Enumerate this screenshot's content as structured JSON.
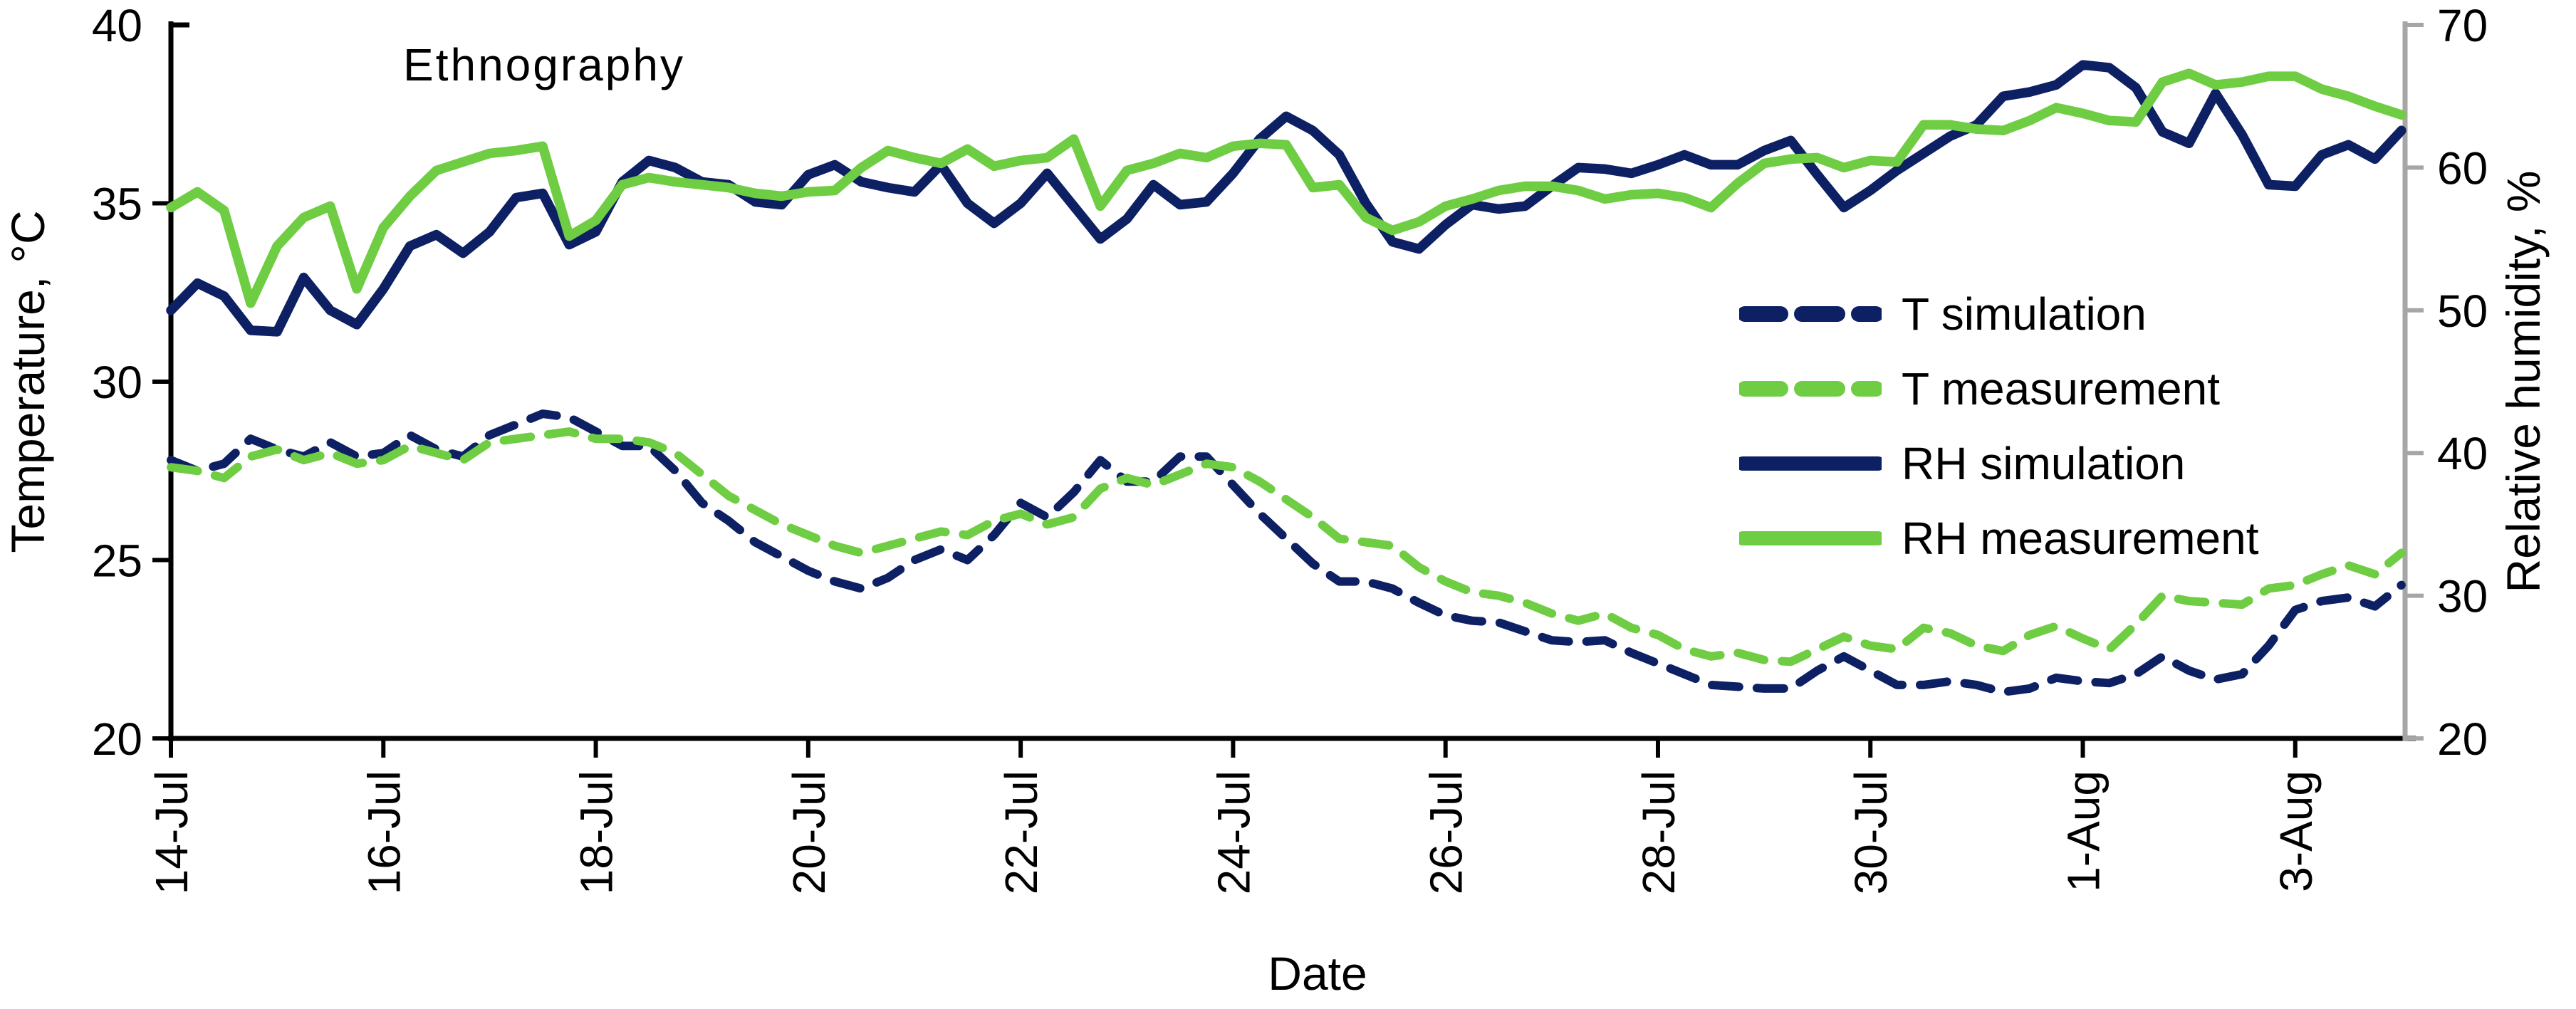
{
  "figure": {
    "background": "#ffffff"
  },
  "colors": {
    "navy": "#0d2063",
    "green": "#6fcd43",
    "right_axis_gray": "#a6a6a6",
    "text": "#000000"
  },
  "chart_data": {
    "type": "line",
    "title": "Ethnography",
    "xlabel": "Date",
    "ylabel_left": "Temperature, °C",
    "ylabel_right": "Relative humidity, %",
    "grid": false,
    "legend_position": "center-right",
    "x_axis": {
      "tick_labels": [
        "14-Jul",
        "16-Jul",
        "18-Jul",
        "20-Jul",
        "22-Jul",
        "24-Jul",
        "26-Jul",
        "28-Jul",
        "30-Jul",
        "1-Aug",
        "3-Aug"
      ],
      "tick_days": [
        0,
        2,
        4,
        6,
        8,
        10,
        12,
        14,
        16,
        18,
        20
      ],
      "rotation": 90
    },
    "left_axis": {
      "min": 20,
      "max": 40,
      "ticks": [
        40,
        35,
        30,
        25,
        20
      ],
      "color": "#000000"
    },
    "right_axis": {
      "min": 20,
      "max": 70,
      "ticks": [
        70,
        60,
        50,
        40,
        30,
        20
      ],
      "color": "#a6a6a6"
    },
    "x_start": 0,
    "x_step": 0.25,
    "series": [
      {
        "name": "T simulation",
        "axis": "left",
        "style": "dashed",
        "color": "#0d2063",
        "values": [
          27.8,
          27.5,
          27.7,
          28.4,
          28.1,
          27.9,
          28.3,
          27.9,
          28.0,
          28.5,
          28.1,
          27.9,
          28.5,
          28.8,
          29.1,
          29.0,
          28.6,
          28.2,
          28.2,
          27.5,
          26.6,
          26.1,
          25.5,
          25.1,
          24.7,
          24.4,
          24.2,
          24.5,
          25.0,
          25.3,
          25.0,
          25.7,
          26.6,
          26.2,
          26.9,
          27.8,
          27.2,
          27.2,
          27.9,
          27.9,
          27.1,
          26.3,
          25.6,
          24.9,
          24.4,
          24.4,
          24.2,
          23.8,
          23.45,
          23.3,
          23.25,
          23.0,
          22.75,
          22.7,
          22.75,
          22.4,
          22.1,
          21.8,
          21.5,
          21.45,
          21.4,
          21.4,
          21.9,
          22.3,
          21.9,
          21.5,
          21.5,
          21.6,
          21.5,
          21.3,
          21.4,
          21.7,
          21.6,
          21.55,
          21.8,
          22.3,
          21.9,
          21.65,
          21.8,
          22.6,
          23.6,
          23.85,
          23.95,
          23.7,
          24.3
        ]
      },
      {
        "name": "T measurement",
        "axis": "left",
        "style": "dashed",
        "color": "#6fcd43",
        "values": [
          27.6,
          27.5,
          27.3,
          27.9,
          28.1,
          27.8,
          28.0,
          27.7,
          27.8,
          28.2,
          28.0,
          27.8,
          28.3,
          28.4,
          28.5,
          28.6,
          28.4,
          28.4,
          28.3,
          28.0,
          27.4,
          26.8,
          26.4,
          26.0,
          25.7,
          25.4,
          25.2,
          25.4,
          25.6,
          25.8,
          25.7,
          26.1,
          26.3,
          26.0,
          26.2,
          27.0,
          27.3,
          27.1,
          27.4,
          27.7,
          27.6,
          27.2,
          26.7,
          26.2,
          25.6,
          25.5,
          25.4,
          24.8,
          24.4,
          24.1,
          24.0,
          23.8,
          23.5,
          23.3,
          23.5,
          23.1,
          22.9,
          22.5,
          22.3,
          22.4,
          22.2,
          22.15,
          22.5,
          22.85,
          22.6,
          22.5,
          23.1,
          22.95,
          22.6,
          22.45,
          22.9,
          23.15,
          22.8,
          22.5,
          23.2,
          24.0,
          23.85,
          23.8,
          23.75,
          24.2,
          24.3,
          24.6,
          24.85,
          24.6,
          25.2
        ]
      },
      {
        "name": "RH simulation",
        "axis": "right",
        "style": "solid",
        "color": "#0d2063",
        "values": [
          50.0,
          51.9,
          51.0,
          48.6,
          48.5,
          52.3,
          50.0,
          49.0,
          51.5,
          54.5,
          55.3,
          54.0,
          55.5,
          57.9,
          58.2,
          54.6,
          55.5,
          59.0,
          60.5,
          60.0,
          59.0,
          58.8,
          57.6,
          57.4,
          59.5,
          60.2,
          59.0,
          58.6,
          58.3,
          60.2,
          57.5,
          56.1,
          57.5,
          59.6,
          57.3,
          55.0,
          56.4,
          58.8,
          57.4,
          57.6,
          59.6,
          62.0,
          63.6,
          62.6,
          60.9,
          57.5,
          54.8,
          54.3,
          56.0,
          57.4,
          57.1,
          57.3,
          58.7,
          60.0,
          59.9,
          59.6,
          60.2,
          60.9,
          60.2,
          60.2,
          61.2,
          61.9,
          59.5,
          57.2,
          58.4,
          59.8,
          61.0,
          62.2,
          63.0,
          65.0,
          65.3,
          65.8,
          67.2,
          67.0,
          65.6,
          62.5,
          61.7,
          65.2,
          62.3,
          58.8,
          58.7,
          60.9,
          61.6,
          60.6,
          62.6
        ]
      },
      {
        "name": "RH measurement",
        "axis": "right",
        "style": "solid",
        "color": "#6fcd43",
        "values": [
          57.2,
          58.3,
          57.0,
          50.5,
          54.5,
          56.5,
          57.3,
          51.5,
          55.8,
          58.0,
          59.8,
          60.4,
          61.0,
          61.2,
          61.5,
          55.2,
          56.3,
          58.8,
          59.3,
          59.0,
          58.8,
          58.6,
          58.2,
          58.0,
          58.3,
          58.4,
          60.0,
          61.2,
          60.7,
          60.3,
          61.3,
          60.1,
          60.5,
          60.7,
          62.0,
          57.3,
          59.8,
          60.3,
          61.0,
          60.7,
          61.5,
          61.7,
          61.6,
          58.6,
          58.8,
          56.5,
          55.6,
          56.2,
          57.3,
          57.8,
          58.4,
          58.7,
          58.7,
          58.4,
          57.8,
          58.1,
          58.2,
          57.9,
          57.2,
          58.9,
          60.3,
          60.6,
          60.7,
          60.0,
          60.5,
          60.4,
          63.0,
          63.0,
          62.7,
          62.6,
          63.3,
          64.2,
          63.8,
          63.3,
          63.2,
          66.0,
          66.6,
          65.8,
          66.0,
          66.4,
          66.4,
          65.5,
          65.0,
          64.3,
          63.7
        ]
      }
    ]
  }
}
